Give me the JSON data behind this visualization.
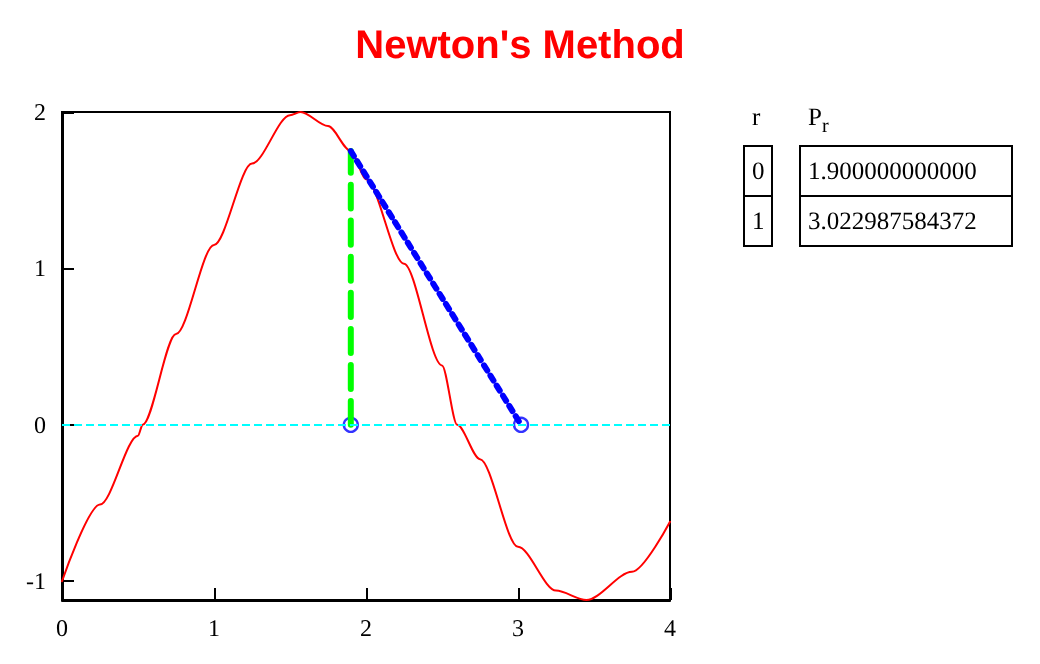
{
  "chart_data": {
    "type": "line",
    "title": "Newton's Method",
    "xlim": [
      0,
      4
    ],
    "xticks": [
      0,
      1,
      2,
      3,
      4
    ],
    "ylim": [
      -1.12,
      2
    ],
    "yticks": [
      -1,
      0,
      1,
      2
    ],
    "grid": false,
    "series": [
      {
        "color": "#ff0000",
        "line_style": "solid",
        "marker": "none",
        "x": [
          0,
          0.25,
          0.5,
          0.53,
          0.75,
          1.0,
          1.25,
          1.5,
          1.57,
          1.75,
          1.9,
          2.0,
          2.25,
          2.5,
          2.6,
          2.75,
          3.0,
          3.25,
          3.45,
          3.75,
          4.0
        ],
        "values": [
          -1.0,
          -0.51,
          -0.07,
          0,
          0.58,
          1.15,
          1.67,
          1.98,
          2.0,
          1.91,
          1.75,
          1.57,
          1.03,
          0.38,
          0,
          -0.22,
          -0.78,
          -1.06,
          -1.12,
          -0.94,
          -0.62
        ]
      },
      {
        "color": "#00ff00",
        "line_style": "dashed",
        "marker": "none",
        "x": [
          1.9,
          1.9
        ],
        "values": [
          0,
          1.75
        ]
      },
      {
        "color": "#0000ff",
        "line_style": "dotted",
        "marker": "none",
        "x": [
          1.9,
          3.02
        ],
        "values": [
          1.75,
          0
        ]
      },
      {
        "type": "scatter",
        "color": "#0000ff",
        "marker": "circle",
        "x": [
          1.9,
          3.02
        ],
        "values": [
          0,
          0
        ]
      }
    ],
    "ref_lines": [
      {
        "axis": "y",
        "value": 0,
        "color": "#00ffff",
        "line_style": "dashed"
      }
    ],
    "annotations": [
      "r",
      "P$_{r}$",
      "0",
      "1.900000000000",
      "1",
      "3.022987584372"
    ]
  }
}
